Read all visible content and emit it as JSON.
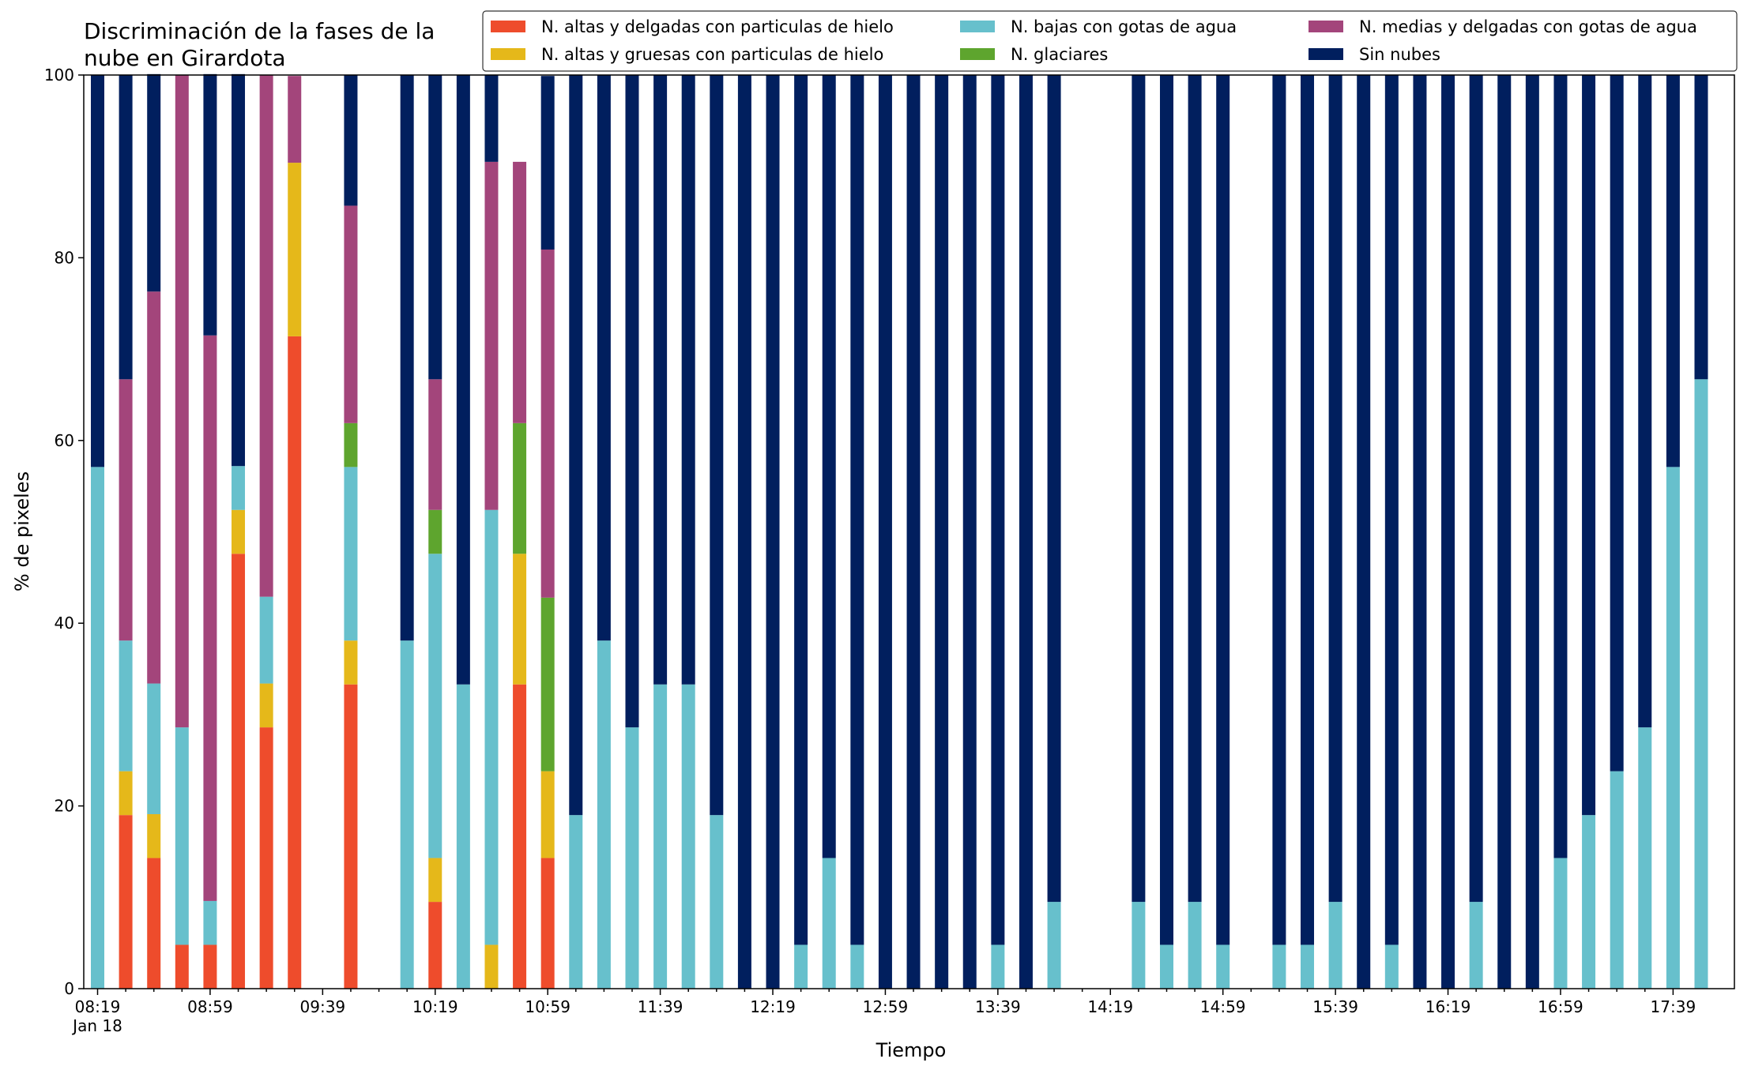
{
  "chart_data": {
    "type": "bar",
    "stacked": true,
    "title": "Discriminación de la fases de la\nnube en Girardota",
    "xlabel": "Tiempo",
    "ylabel": "% de pixeles",
    "ylim": [
      0,
      100
    ],
    "yticks": [
      "0",
      "20",
      "40",
      "60",
      "80",
      "100"
    ],
    "xtick_labels": [
      "08:19",
      "08:59",
      "09:39",
      "10:19",
      "10:59",
      "11:39",
      "12:19",
      "12:59",
      "13:39",
      "14:19",
      "14:59",
      "15:39",
      "16:19",
      "16:59",
      "17:39"
    ],
    "xtick_sublabel": "Jan 18",
    "x_start": "08:19",
    "x_interval_minutes": 10,
    "legend_position": "top-right",
    "legend": [
      {
        "name": "N. altas y delgadas con particulas de hielo",
        "color": "#ee4c2c"
      },
      {
        "name": "N. altas y gruesas con particulas de hielo",
        "color": "#e5b81a"
      },
      {
        "name": "N. bajas con gotas de agua",
        "color": "#67c0cc"
      },
      {
        "name": "N. glaciares",
        "color": "#5ea52e"
      },
      {
        "name": "N. medias y delgadas con gotas de agua",
        "color": "#a3457b"
      },
      {
        "name": "Sin nubes",
        "color": "#011f5e"
      }
    ],
    "series": [
      {
        "name": "N. altas y delgadas con particulas de hielo",
        "color": "#ee4c2c",
        "values": [
          0,
          19,
          14.3,
          4.8,
          4.8,
          47.6,
          28.6,
          71.4,
          null,
          33.3,
          null,
          0,
          9.5,
          0,
          0,
          33.3,
          14.3,
          0,
          0,
          0,
          0,
          0,
          0,
          0,
          0,
          0,
          0,
          0,
          0,
          0,
          0,
          0,
          0,
          0,
          0,
          null,
          null,
          0,
          0,
          0,
          0,
          null,
          0,
          0,
          0,
          0,
          0,
          0,
          0,
          0,
          0,
          0,
          0,
          0,
          0,
          0,
          0,
          0
        ]
      },
      {
        "name": "N. altas y gruesas con particulas de hielo",
        "color": "#e5b81a",
        "values": [
          0,
          4.8,
          4.8,
          0,
          0,
          4.8,
          4.8,
          19,
          null,
          4.8,
          null,
          0,
          4.8,
          0,
          4.8,
          14.3,
          9.5,
          0,
          0,
          0,
          0,
          0,
          0,
          0,
          0,
          0,
          0,
          0,
          0,
          0,
          0,
          0,
          0,
          0,
          0,
          null,
          null,
          0,
          0,
          0,
          0,
          null,
          0,
          0,
          0,
          0,
          0,
          0,
          0,
          0,
          0,
          0,
          0,
          0,
          0,
          0,
          0,
          0
        ]
      },
      {
        "name": "N. bajas con gotas de agua",
        "color": "#67c0cc",
        "values": [
          57.1,
          14.3,
          14.3,
          23.8,
          4.8,
          4.8,
          9.5,
          0,
          null,
          19,
          null,
          38.1,
          33.3,
          33.3,
          47.6,
          0,
          0,
          19,
          38.1,
          28.6,
          33.3,
          33.3,
          19,
          0,
          0,
          4.8,
          14.3,
          4.8,
          0,
          0,
          0,
          0,
          4.8,
          0,
          9.5,
          null,
          null,
          9.5,
          4.8,
          9.5,
          4.8,
          null,
          4.8,
          4.8,
          9.5,
          0,
          4.8,
          0,
          0,
          9.5,
          0,
          0,
          14.3,
          19,
          23.8,
          28.6,
          57.1,
          66.7
        ]
      },
      {
        "name": "N. glaciares",
        "color": "#5ea52e",
        "values": [
          0,
          0,
          0,
          0,
          0,
          0,
          0,
          0,
          null,
          4.8,
          null,
          0,
          4.8,
          0,
          0,
          14.3,
          19,
          0,
          0,
          0,
          0,
          0,
          0,
          0,
          0,
          0,
          0,
          0,
          0,
          0,
          0,
          0,
          0,
          0,
          0,
          null,
          null,
          0,
          0,
          0,
          0,
          null,
          0,
          0,
          0,
          0,
          0,
          0,
          0,
          0,
          0,
          0,
          0,
          0,
          0,
          0,
          0,
          0
        ]
      },
      {
        "name": "N. medias y delgadas con gotas de agua",
        "color": "#a3457b",
        "values": [
          0,
          28.6,
          42.9,
          71.4,
          61.9,
          0,
          57.1,
          9.5,
          null,
          23.8,
          null,
          0,
          14.3,
          0,
          38.1,
          28.6,
          38.1,
          0,
          0,
          0,
          0,
          0,
          0,
          0,
          0,
          0,
          0,
          0,
          0,
          0,
          0,
          0,
          0,
          0,
          0,
          null,
          null,
          0,
          0,
          0,
          0,
          null,
          0,
          0,
          0,
          0,
          0,
          0,
          0,
          0,
          0,
          0,
          0,
          0,
          0,
          0,
          0,
          0
        ]
      },
      {
        "name": "Sin nubes",
        "color": "#011f5e",
        "values": [
          42.9,
          33.3,
          23.8,
          0,
          28.6,
          42.9,
          0,
          0,
          null,
          14.3,
          null,
          61.9,
          33.3,
          66.7,
          9.5,
          0,
          19,
          81,
          61.9,
          71.4,
          66.7,
          66.7,
          81,
          100,
          100,
          95.2,
          85.7,
          95.2,
          100,
          100,
          100,
          100,
          95.2,
          100,
          90.5,
          null,
          null,
          90.5,
          95.2,
          90.5,
          95.2,
          null,
          95.2,
          95.2,
          90.5,
          100,
          95.2,
          100,
          100,
          90.5,
          100,
          100,
          85.7,
          81,
          76.2,
          71.4,
          42.9,
          33.3
        ]
      }
    ]
  }
}
